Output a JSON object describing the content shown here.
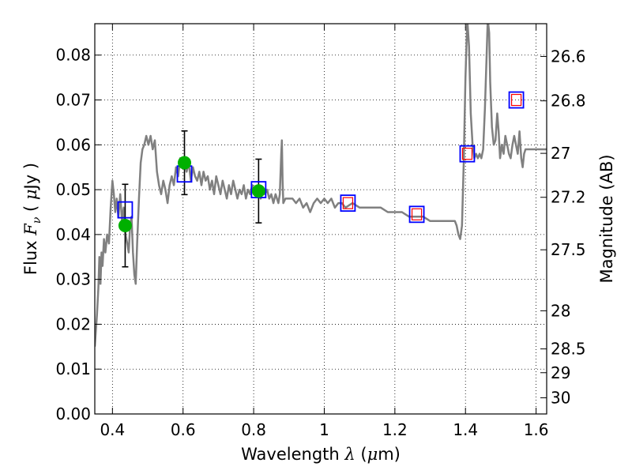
{
  "chart_data": {
    "type": "line",
    "xlabel_parts": [
      "Wavelength  ",
      "λ",
      " (",
      "μ",
      "m)"
    ],
    "ylabel_parts": [
      "Flux  ",
      "F",
      "ν",
      "  ( ",
      "μ",
      "Jy )"
    ],
    "y2label": "Magnitude (AB)",
    "xlim": [
      0.35,
      1.63
    ],
    "ylim": [
      0.0,
      0.087
    ],
    "grid": true,
    "x_ticks": [
      0.4,
      0.6,
      0.8,
      1.0,
      1.2,
      1.4,
      1.6
    ],
    "x_tick_labels": [
      "0.4",
      "0.6",
      "0.8",
      "1",
      "1.2",
      "1.4",
      "1.6"
    ],
    "y_ticks": [
      0.0,
      0.01,
      0.02,
      0.03,
      0.04,
      0.05,
      0.06,
      0.07,
      0.08
    ],
    "y_tick_labels": [
      "0.00",
      "0.01",
      "0.02",
      "0.03",
      "0.04",
      "0.05",
      "0.06",
      "0.07",
      "0.08"
    ],
    "y2_ticks": [
      {
        "label": "26.6",
        "flux": 0.0797
      },
      {
        "label": "26.8",
        "flux": 0.0698
      },
      {
        "label": "27",
        "flux": 0.0581
      },
      {
        "label": "27.2",
        "flux": 0.0483
      },
      {
        "label": "27.5",
        "flux": 0.0366
      },
      {
        "label": "28",
        "flux": 0.023
      },
      {
        "label": "28.5",
        "flux": 0.0145
      },
      {
        "label": "29",
        "flux": 0.0092
      },
      {
        "label": "30",
        "flux": 0.0036
      }
    ],
    "series": [
      {
        "kind": "model-spectrum",
        "color": "#808080",
        "points": [
          [
            0.35,
            0.015
          ],
          [
            0.356,
            0.022
          ],
          [
            0.36,
            0.028
          ],
          [
            0.363,
            0.035
          ],
          [
            0.366,
            0.029
          ],
          [
            0.369,
            0.036
          ],
          [
            0.372,
            0.033
          ],
          [
            0.376,
            0.039
          ],
          [
            0.38,
            0.036
          ],
          [
            0.385,
            0.04
          ],
          [
            0.39,
            0.038
          ],
          [
            0.395,
            0.046
          ],
          [
            0.4,
            0.052
          ],
          [
            0.404,
            0.049
          ],
          [
            0.408,
            0.045
          ],
          [
            0.412,
            0.048
          ],
          [
            0.417,
            0.044
          ],
          [
            0.422,
            0.049
          ],
          [
            0.427,
            0.043
          ],
          [
            0.432,
            0.046
          ],
          [
            0.437,
            0.04
          ],
          [
            0.442,
            0.038
          ],
          [
            0.446,
            0.036
          ],
          [
            0.45,
            0.042
          ],
          [
            0.454,
            0.044
          ],
          [
            0.458,
            0.036
          ],
          [
            0.462,
            0.031
          ],
          [
            0.466,
            0.029
          ],
          [
            0.47,
            0.038
          ],
          [
            0.475,
            0.048
          ],
          [
            0.48,
            0.056
          ],
          [
            0.485,
            0.059
          ],
          [
            0.49,
            0.06
          ],
          [
            0.496,
            0.062
          ],
          [
            0.502,
            0.06
          ],
          [
            0.508,
            0.062
          ],
          [
            0.514,
            0.059
          ],
          [
            0.52,
            0.061
          ],
          [
            0.526,
            0.054
          ],
          [
            0.532,
            0.051
          ],
          [
            0.538,
            0.049
          ],
          [
            0.544,
            0.052
          ],
          [
            0.55,
            0.05
          ],
          [
            0.556,
            0.047
          ],
          [
            0.562,
            0.051
          ],
          [
            0.568,
            0.053
          ],
          [
            0.574,
            0.051
          ],
          [
            0.58,
            0.055
          ],
          [
            0.586,
            0.053
          ],
          [
            0.592,
            0.057
          ],
          [
            0.598,
            0.055
          ],
          [
            0.604,
            0.057
          ],
          [
            0.61,
            0.054
          ],
          [
            0.616,
            0.056
          ],
          [
            0.622,
            0.052
          ],
          [
            0.628,
            0.055
          ],
          [
            0.634,
            0.053
          ],
          [
            0.64,
            0.052
          ],
          [
            0.646,
            0.054
          ],
          [
            0.652,
            0.051
          ],
          [
            0.658,
            0.054
          ],
          [
            0.664,
            0.052
          ],
          [
            0.67,
            0.053
          ],
          [
            0.676,
            0.05
          ],
          [
            0.682,
            0.052
          ],
          [
            0.688,
            0.049
          ],
          [
            0.694,
            0.053
          ],
          [
            0.7,
            0.051
          ],
          [
            0.706,
            0.049
          ],
          [
            0.712,
            0.052
          ],
          [
            0.718,
            0.05
          ],
          [
            0.724,
            0.048
          ],
          [
            0.73,
            0.051
          ],
          [
            0.736,
            0.049
          ],
          [
            0.742,
            0.052
          ],
          [
            0.748,
            0.05
          ],
          [
            0.754,
            0.048
          ],
          [
            0.76,
            0.05
          ],
          [
            0.766,
            0.049
          ],
          [
            0.772,
            0.051
          ],
          [
            0.778,
            0.048
          ],
          [
            0.784,
            0.05
          ],
          [
            0.79,
            0.049
          ],
          [
            0.796,
            0.051
          ],
          [
            0.802,
            0.049
          ],
          [
            0.808,
            0.05
          ],
          [
            0.814,
            0.049
          ],
          [
            0.82,
            0.048
          ],
          [
            0.826,
            0.05
          ],
          [
            0.832,
            0.049
          ],
          [
            0.838,
            0.05
          ],
          [
            0.844,
            0.048
          ],
          [
            0.85,
            0.049
          ],
          [
            0.856,
            0.047
          ],
          [
            0.862,
            0.049
          ],
          [
            0.866,
            0.048
          ],
          [
            0.87,
            0.047
          ],
          [
            0.874,
            0.049
          ],
          [
            0.878,
            0.058
          ],
          [
            0.88,
            0.061
          ],
          [
            0.882,
            0.052
          ],
          [
            0.884,
            0.047
          ],
          [
            0.89,
            0.048
          ],
          [
            0.9,
            0.048
          ],
          [
            0.91,
            0.048
          ],
          [
            0.92,
            0.047
          ],
          [
            0.93,
            0.048
          ],
          [
            0.94,
            0.046
          ],
          [
            0.95,
            0.047
          ],
          [
            0.96,
            0.045
          ],
          [
            0.97,
            0.047
          ],
          [
            0.98,
            0.048
          ],
          [
            0.99,
            0.047
          ],
          [
            1.0,
            0.048
          ],
          [
            1.01,
            0.047
          ],
          [
            1.02,
            0.048
          ],
          [
            1.03,
            0.046
          ],
          [
            1.04,
            0.047
          ],
          [
            1.05,
            0.047
          ],
          [
            1.06,
            0.046
          ],
          [
            1.08,
            0.047
          ],
          [
            1.1,
            0.046
          ],
          [
            1.12,
            0.046
          ],
          [
            1.14,
            0.046
          ],
          [
            1.16,
            0.046
          ],
          [
            1.18,
            0.045
          ],
          [
            1.2,
            0.045
          ],
          [
            1.22,
            0.045
          ],
          [
            1.24,
            0.044
          ],
          [
            1.26,
            0.044
          ],
          [
            1.28,
            0.044
          ],
          [
            1.3,
            0.043
          ],
          [
            1.32,
            0.043
          ],
          [
            1.34,
            0.043
          ],
          [
            1.36,
            0.043
          ],
          [
            1.37,
            0.043
          ],
          [
            1.375,
            0.042
          ],
          [
            1.38,
            0.04
          ],
          [
            1.385,
            0.039
          ],
          [
            1.39,
            0.042
          ],
          [
            1.395,
            0.056
          ],
          [
            1.4,
            0.075
          ],
          [
            1.405,
            0.088
          ],
          [
            1.41,
            0.082
          ],
          [
            1.415,
            0.067
          ],
          [
            1.42,
            0.06
          ],
          [
            1.425,
            0.057
          ],
          [
            1.43,
            0.058
          ],
          [
            1.435,
            0.057
          ],
          [
            1.44,
            0.058
          ],
          [
            1.445,
            0.057
          ],
          [
            1.45,
            0.059
          ],
          [
            1.455,
            0.068
          ],
          [
            1.46,
            0.08
          ],
          [
            1.463,
            0.088
          ],
          [
            1.467,
            0.085
          ],
          [
            1.47,
            0.074
          ],
          [
            1.475,
            0.064
          ],
          [
            1.48,
            0.06
          ],
          [
            1.485,
            0.061
          ],
          [
            1.49,
            0.067
          ],
          [
            1.494,
            0.063
          ],
          [
            1.498,
            0.057
          ],
          [
            1.503,
            0.06
          ],
          [
            1.508,
            0.058
          ],
          [
            1.513,
            0.062
          ],
          [
            1.518,
            0.06
          ],
          [
            1.523,
            0.058
          ],
          [
            1.528,
            0.057
          ],
          [
            1.533,
            0.06
          ],
          [
            1.538,
            0.062
          ],
          [
            1.543,
            0.06
          ],
          [
            1.548,
            0.058
          ],
          [
            1.553,
            0.063
          ],
          [
            1.558,
            0.057
          ],
          [
            1.562,
            0.055
          ],
          [
            1.566,
            0.058
          ],
          [
            1.57,
            0.059
          ],
          [
            1.58,
            0.059
          ],
          [
            1.59,
            0.059
          ],
          [
            1.6,
            0.059
          ],
          [
            1.61,
            0.059
          ],
          [
            1.62,
            0.059
          ],
          [
            1.63,
            0.059
          ]
        ]
      },
      {
        "kind": "model-squares",
        "color": "#0000ff",
        "points": [
          [
            0.436,
            0.0455
          ],
          [
            0.604,
            0.0535
          ],
          [
            0.814,
            0.05
          ],
          [
            1.067,
            0.047
          ],
          [
            1.262,
            0.0445
          ],
          [
            1.405,
            0.058
          ],
          [
            1.544,
            0.07
          ]
        ]
      },
      {
        "kind": "upper-limit-squares",
        "color": "#ff0000",
        "points": [
          [
            1.067,
            0.047
          ],
          [
            1.262,
            0.0445
          ],
          [
            1.405,
            0.058
          ],
          [
            1.544,
            0.07
          ]
        ]
      },
      {
        "kind": "measurements",
        "color": "#00b000",
        "points": [
          [
            0.436,
            0.042,
            0.0092
          ],
          [
            0.604,
            0.056,
            0.0071
          ],
          [
            0.814,
            0.0497,
            0.0071
          ]
        ]
      }
    ]
  }
}
